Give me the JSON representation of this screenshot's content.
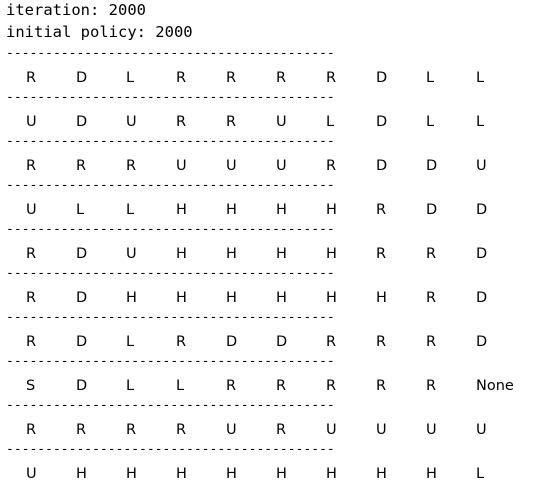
{
  "console": {
    "iteration_line": "iteration: 2000",
    "policy_line": "initial policy: 2000",
    "separator": "------------------------------------------",
    "grid": [
      [
        "R",
        "D",
        "L",
        "R",
        "R",
        "R",
        "R",
        "D",
        "L",
        "L"
      ],
      [
        "U",
        "D",
        "U",
        "R",
        "R",
        "U",
        "L",
        "D",
        "L",
        "L"
      ],
      [
        "R",
        "R",
        "R",
        "U",
        "U",
        "U",
        "R",
        "D",
        "D",
        "U"
      ],
      [
        "U",
        "L",
        "L",
        "H",
        "H",
        "H",
        "H",
        "R",
        "D",
        "D"
      ],
      [
        "R",
        "D",
        "U",
        "H",
        "H",
        "H",
        "H",
        "R",
        "R",
        "D"
      ],
      [
        "R",
        "D",
        "H",
        "H",
        "H",
        "H",
        "H",
        "H",
        "R",
        "D"
      ],
      [
        "R",
        "D",
        "L",
        "R",
        "D",
        "D",
        "R",
        "R",
        "R",
        "D"
      ],
      [
        "S",
        "D",
        "L",
        "L",
        "R",
        "R",
        "R",
        "R",
        "R",
        "None"
      ],
      [
        "R",
        "R",
        "R",
        "R",
        "U",
        "R",
        "U",
        "U",
        "U",
        "U"
      ],
      [
        "U",
        "H",
        "H",
        "H",
        "H",
        "H",
        "H",
        "H",
        "H",
        "L"
      ]
    ]
  }
}
